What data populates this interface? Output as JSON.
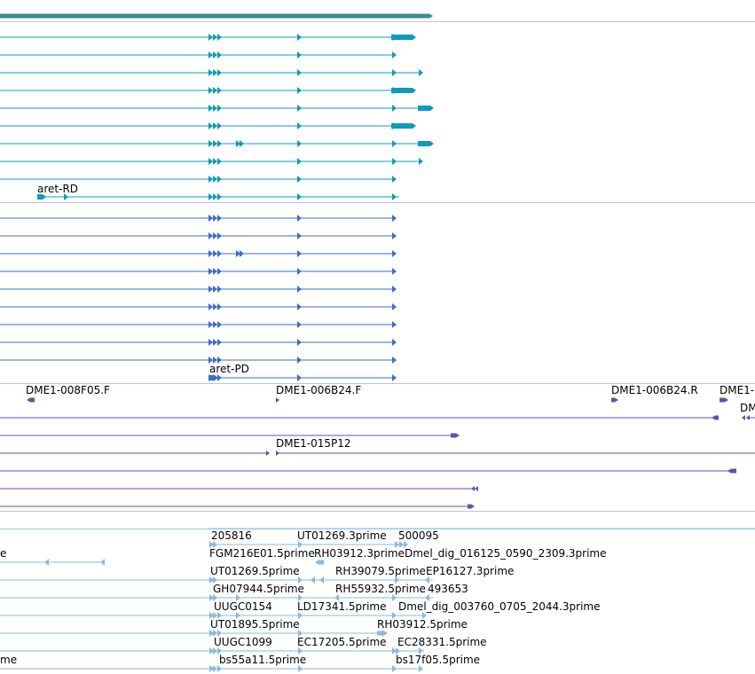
{
  "colors": {
    "gene": "#3a8e8c",
    "transcript": "#0f9bbb",
    "protein": "#3b6ecb",
    "clone": "#6a4fa6",
    "est": "#8ab8e0",
    "separator": "#c4c4c4"
  },
  "tracks": {
    "gene": {
      "label": ""
    },
    "transcripts": {
      "labels": {
        "aret_rd": "aret-RD"
      }
    },
    "proteins": {
      "labels": {
        "aret_pd": "aret-PD"
      }
    },
    "clones": {
      "labels": {
        "c1": "DME1-008F05.F",
        "c2": "DME1-006B24.F",
        "c3": "DME1-006B24.R",
        "c4": "DME1-",
        "c5": "DM",
        "c6": "DME1-015P12"
      }
    },
    "ests": {
      "labels": {
        "e1": "205816",
        "e2": "UT01269.3prime",
        "e3": "500095",
        "e4": "e",
        "e5": "FGM216E01.5prime",
        "e6": "RH03912.3prime",
        "e7": "Dmel_dig_016125_0590_2309.3prime",
        "e8": "UT01269.5prime",
        "e9": "RH39079.5prime",
        "e10": "EP16127.3prime",
        "e11": "GH07944.5prime",
        "e12": "RH55932.5prime",
        "e13": "493653",
        "e14": "UUGC0154",
        "e15": "LD17341.5prime",
        "e16": "Dmel_dig_003760_0705_2044.3prime",
        "e17": "UT01895.5prime",
        "e18": "RH03912.5prime",
        "e19": "UUGC1099",
        "e20": "EC17205.5prime",
        "e21": "EC28331.5prime",
        "e22": "me",
        "e23": "bs55a11.5prime",
        "e24": "bs17f05.5prime"
      }
    }
  }
}
